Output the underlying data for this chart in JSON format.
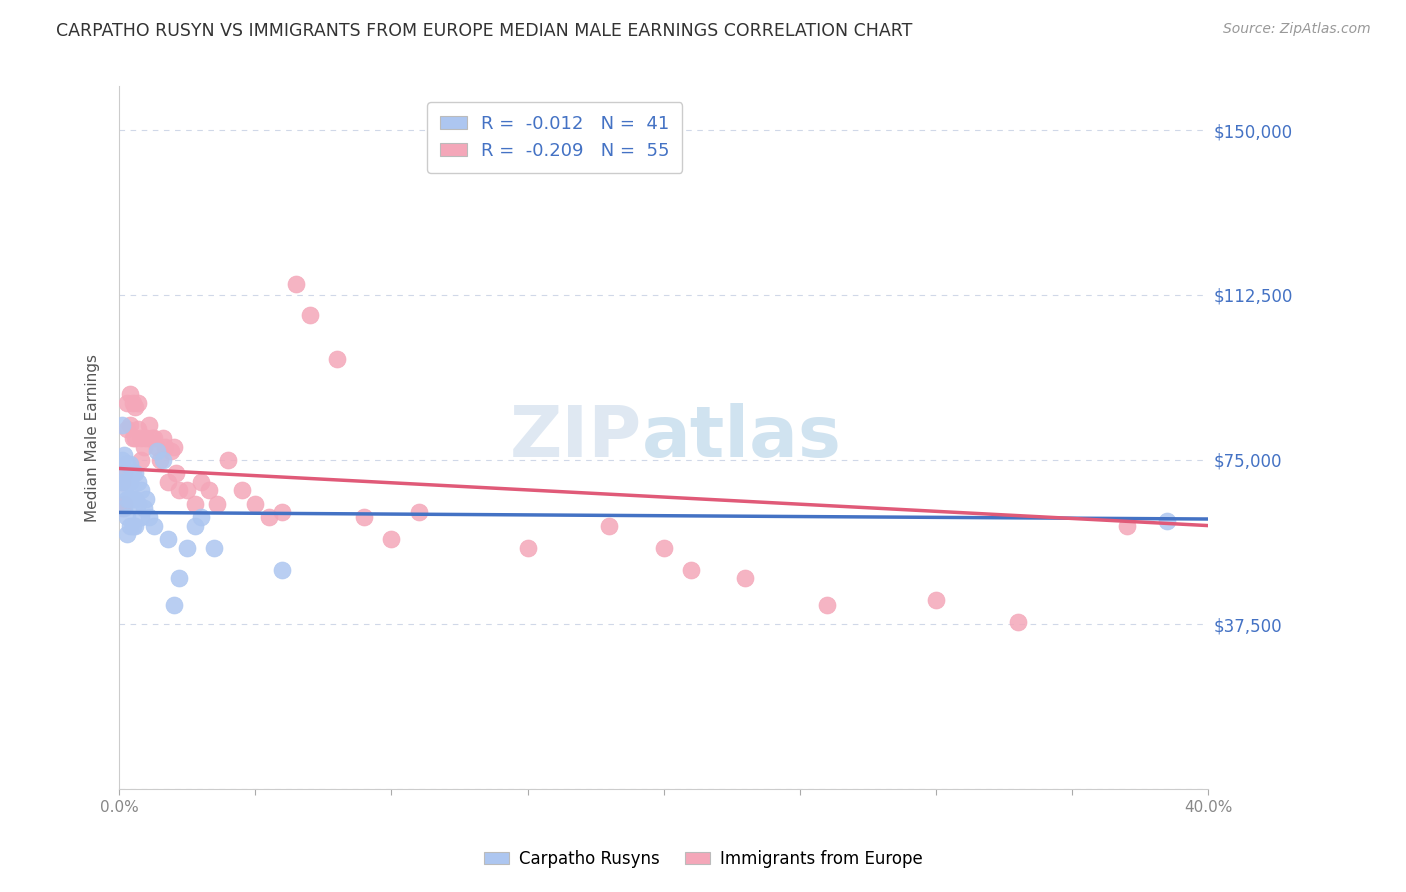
{
  "title": "CARPATHO RUSYN VS IMMIGRANTS FROM EUROPE MEDIAN MALE EARNINGS CORRELATION CHART",
  "source": "Source: ZipAtlas.com",
  "ylabel": "Median Male Earnings",
  "yticks": [
    0,
    37500,
    75000,
    112500,
    150000
  ],
  "ytick_labels": [
    "",
    "$37,500",
    "$75,000",
    "$112,500",
    "$150,000"
  ],
  "xmin": 0.0,
  "xmax": 0.4,
  "ymin": 0,
  "ymax": 160000,
  "watermark": "ZIPatlas",
  "carpatho_rusyns": {
    "color": "#adc6f0",
    "line_color": "#4472c4",
    "R": -0.012,
    "N": 41,
    "x": [
      0.001,
      0.001,
      0.001,
      0.002,
      0.002,
      0.002,
      0.002,
      0.003,
      0.003,
      0.003,
      0.003,
      0.003,
      0.004,
      0.004,
      0.004,
      0.004,
      0.005,
      0.005,
      0.005,
      0.006,
      0.006,
      0.006,
      0.007,
      0.007,
      0.008,
      0.008,
      0.009,
      0.01,
      0.011,
      0.013,
      0.014,
      0.016,
      0.018,
      0.02,
      0.022,
      0.025,
      0.028,
      0.03,
      0.035,
      0.06,
      0.385
    ],
    "y": [
      83000,
      75000,
      70000,
      76000,
      72000,
      68000,
      64000,
      74000,
      70000,
      66000,
      62000,
      58000,
      74000,
      70000,
      66000,
      60000,
      72000,
      66000,
      60000,
      72000,
      66000,
      60000,
      70000,
      65000,
      68000,
      62000,
      64000,
      66000,
      62000,
      60000,
      77000,
      75000,
      57000,
      42000,
      48000,
      55000,
      60000,
      62000,
      55000,
      50000,
      61000
    ]
  },
  "immigrants_europe": {
    "color": "#f4a7b9",
    "line_color": "#e05a78",
    "R": -0.209,
    "N": 55,
    "x": [
      0.001,
      0.001,
      0.002,
      0.002,
      0.003,
      0.003,
      0.004,
      0.004,
      0.005,
      0.005,
      0.006,
      0.006,
      0.007,
      0.007,
      0.008,
      0.008,
      0.009,
      0.01,
      0.011,
      0.012,
      0.013,
      0.014,
      0.015,
      0.016,
      0.017,
      0.018,
      0.019,
      0.02,
      0.021,
      0.022,
      0.025,
      0.028,
      0.03,
      0.033,
      0.036,
      0.04,
      0.045,
      0.05,
      0.055,
      0.06,
      0.065,
      0.07,
      0.08,
      0.09,
      0.1,
      0.11,
      0.15,
      0.18,
      0.2,
      0.21,
      0.23,
      0.26,
      0.3,
      0.33,
      0.37
    ],
    "y": [
      70000,
      64000,
      72000,
      65000,
      88000,
      82000,
      90000,
      83000,
      88000,
      80000,
      87000,
      80000,
      88000,
      82000,
      80000,
      75000,
      78000,
      80000,
      83000,
      80000,
      80000,
      78000,
      75000,
      80000,
      78000,
      70000,
      77000,
      78000,
      72000,
      68000,
      68000,
      65000,
      70000,
      68000,
      65000,
      75000,
      68000,
      65000,
      62000,
      63000,
      115000,
      108000,
      98000,
      62000,
      57000,
      63000,
      55000,
      60000,
      55000,
      50000,
      48000,
      42000,
      43000,
      38000,
      60000
    ]
  },
  "background_color": "#ffffff",
  "grid_color": "#d0d8e8",
  "title_color": "#333333",
  "axis_label_color": "#555555",
  "ytick_color": "#4472c4",
  "bottom_legend": [
    "Carpatho Rusyns",
    "Immigrants from Europe"
  ]
}
